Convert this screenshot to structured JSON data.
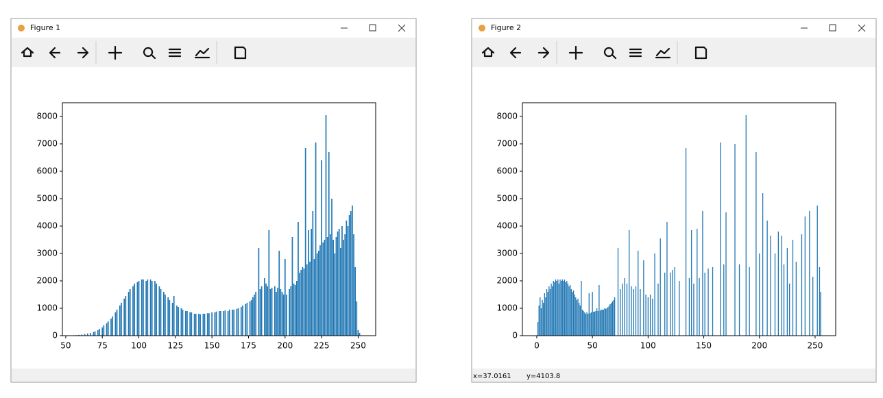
{
  "windows": [
    {
      "title": "Figure 1"
    },
    {
      "title": "Figure 2",
      "status_x": "x=37.0161",
      "status_y": "y=4103.8"
    }
  ],
  "chart_data": [
    {
      "type": "bar",
      "color": "#1f77b4",
      "x": [
        55,
        57,
        59,
        61,
        63,
        65,
        67,
        69,
        70,
        72,
        73,
        75,
        76,
        78,
        79,
        81,
        82,
        84,
        85,
        87,
        88,
        90,
        91,
        93,
        94,
        96,
        97,
        99,
        100,
        102,
        103,
        105,
        106,
        108,
        109,
        111,
        112,
        114,
        115,
        117,
        118,
        120,
        121,
        123,
        124,
        126,
        127,
        129,
        130,
        132,
        133,
        135,
        136,
        138,
        139,
        141,
        142,
        144,
        145,
        147,
        148,
        150,
        152,
        153,
        155,
        156,
        158,
        159,
        161,
        162,
        164,
        165,
        167,
        168,
        170,
        171,
        173,
        174,
        176,
        177,
        178,
        179,
        180,
        182,
        183,
        184,
        186,
        187,
        188,
        189,
        190,
        191,
        193,
        194,
        195,
        196,
        197,
        198,
        199,
        200,
        201,
        203,
        204,
        205,
        206,
        207,
        208,
        209,
        210,
        211,
        212,
        213,
        214,
        215,
        216,
        217,
        218,
        219,
        220,
        221,
        222,
        223,
        224,
        225,
        226,
        227,
        228,
        229,
        230,
        231,
        232,
        233,
        234,
        235,
        236,
        237,
        238,
        239,
        240,
        241,
        242,
        243,
        244,
        245,
        246,
        247,
        248,
        249,
        250,
        251
      ],
      "values": [
        10,
        20,
        30,
        40,
        60,
        80,
        100,
        130,
        160,
        200,
        250,
        300,
        380,
        450,
        520,
        620,
        700,
        850,
        950,
        1100,
        1200,
        1350,
        1450,
        1600,
        1700,
        1800,
        1900,
        1950,
        2000,
        2050,
        2050,
        2000,
        2050,
        2050,
        2000,
        2000,
        1900,
        1800,
        1700,
        1600,
        1500,
        1400,
        1300,
        1200,
        1450,
        1100,
        1050,
        1000,
        950,
        900,
        900,
        850,
        850,
        800,
        800,
        800,
        780,
        800,
        800,
        820,
        820,
        850,
        850,
        880,
        900,
        900,
        900,
        920,
        900,
        950,
        950,
        950,
        980,
        1000,
        1050,
        1100,
        1150,
        1200,
        1250,
        1300,
        1400,
        1500,
        1600,
        3200,
        1700,
        1800,
        2100,
        1900,
        1800,
        3850,
        1700,
        1750,
        1800,
        1600,
        1750,
        3100,
        1700,
        1600,
        1500,
        2800,
        1500,
        1700,
        1800,
        3600,
        1900,
        1850,
        2000,
        4150,
        2300,
        2400,
        2500,
        2450,
        6850,
        2600,
        3850,
        2700,
        3900,
        4550,
        2800,
        7050,
        3000,
        3100,
        3300,
        6400,
        3400,
        3500,
        8050,
        3600,
        6700,
        3700,
        5000,
        3500,
        3000,
        3600,
        3800,
        3900,
        3200,
        4000,
        3500,
        3700,
        4200,
        4000,
        4400,
        4550,
        4750,
        3700,
        2500,
        1250,
        200,
        100
      ],
      "xlim": [
        47.7,
        262
      ],
      "ylim": [
        0,
        8500
      ],
      "xticks": [
        50,
        75,
        100,
        125,
        150,
        175,
        200,
        225,
        250
      ],
      "yticks": [
        0,
        1000,
        2000,
        3000,
        4000,
        5000,
        6000,
        7000,
        8000
      ]
    },
    {
      "type": "bar",
      "color": "#1f77b4",
      "x": [
        1,
        2,
        3,
        4,
        5,
        6,
        7,
        8,
        9,
        10,
        11,
        12,
        13,
        14,
        15,
        16,
        17,
        18,
        19,
        20,
        21,
        22,
        23,
        24,
        25,
        26,
        27,
        28,
        29,
        30,
        31,
        32,
        33,
        34,
        35,
        36,
        37,
        38,
        39,
        40,
        41,
        42,
        43,
        44,
        45,
        46,
        47,
        48,
        49,
        50,
        51,
        52,
        53,
        54,
        55,
        56,
        57,
        58,
        59,
        60,
        61,
        62,
        63,
        64,
        65,
        66,
        67,
        68,
        69,
        70,
        73,
        75,
        77,
        79,
        81,
        83,
        85,
        87,
        89,
        91,
        93,
        96,
        98,
        100,
        102,
        104,
        106,
        109,
        111,
        115,
        117,
        120,
        122,
        124,
        128,
        134,
        137,
        139,
        141,
        144,
        146,
        149,
        151,
        154,
        158,
        165,
        168,
        170,
        178,
        182,
        188,
        191,
        197,
        200,
        203,
        207,
        210,
        214,
        217,
        220,
        222,
        225,
        227,
        230,
        233,
        238,
        241,
        245,
        248,
        252,
        254,
        255
      ],
      "values": [
        500,
        1100,
        1400,
        1000,
        1300,
        1200,
        1550,
        1400,
        1700,
        1600,
        1800,
        1700,
        1900,
        1800,
        2000,
        1950,
        2050,
        2000,
        2050,
        1900,
        2050,
        2000,
        2050,
        2000,
        2050,
        1950,
        2000,
        1900,
        1800,
        1850,
        1700,
        1600,
        1650,
        1500,
        1400,
        1300,
        1350,
        1200,
        1100,
        2000,
        950,
        900,
        850,
        800,
        850,
        800,
        1550,
        820,
        850,
        1600,
        870,
        880,
        900,
        1000,
        900,
        1850,
        920,
        950,
        950,
        950,
        1000,
        980,
        1000,
        1050,
        1100,
        1150,
        1200,
        1250,
        1300,
        1400,
        3200,
        1700,
        1900,
        2100,
        1900,
        3850,
        1800,
        1700,
        1800,
        3100,
        1700,
        2750,
        1500,
        1400,
        1500,
        1350,
        3000,
        1900,
        3550,
        2300,
        4150,
        2300,
        2400,
        2500,
        2000,
        6850,
        2100,
        3850,
        1900,
        3900,
        2100,
        4550,
        2300,
        2450,
        2500,
        7050,
        2600,
        4500,
        7000,
        2600,
        8050,
        2500,
        6700,
        3000,
        5200,
        4200,
        3650,
        3000,
        3800,
        3650,
        2600,
        3200,
        1900,
        3500,
        2700,
        3700,
        4350,
        4550,
        2150,
        4750,
        2500,
        1600
      ],
      "xlim": [
        -12.9,
        268.5
      ],
      "ylim": [
        0,
        8500
      ],
      "xticks": [
        0,
        50,
        100,
        150,
        200,
        250
      ],
      "yticks": [
        0,
        1000,
        2000,
        3000,
        4000,
        5000,
        6000,
        7000,
        8000
      ]
    }
  ]
}
